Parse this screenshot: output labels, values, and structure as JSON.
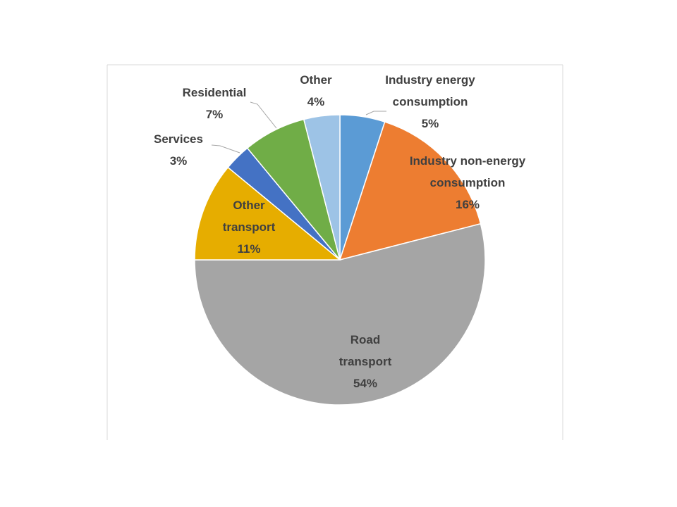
{
  "chart_data": {
    "type": "pie",
    "categories": [
      "Industry energy consumption",
      "Industry non-energy consumption",
      "Road transport",
      "Other transport",
      "Services",
      "Residential",
      "Other"
    ],
    "values": [
      5,
      16,
      54,
      11,
      3,
      7,
      4
    ],
    "value_labels": [
      "5%",
      "16%",
      "54%",
      "11%",
      "3%",
      "7%",
      "4%"
    ],
    "colors": [
      "#5b9bd5",
      "#ed7d31",
      "#a5a5a5",
      "#e6ad00",
      "#4472c4",
      "#70ad47",
      "#9dc3e6"
    ]
  }
}
